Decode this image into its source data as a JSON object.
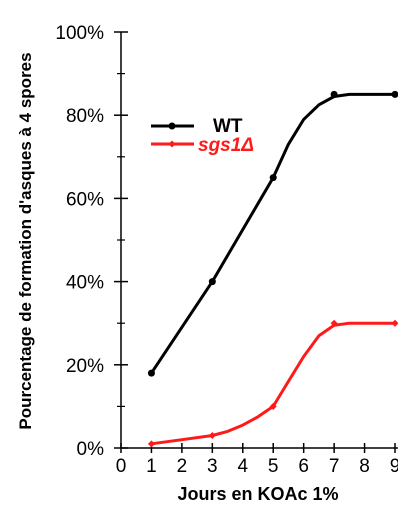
{
  "chart_data": {
    "type": "line",
    "title": "",
    "xlabel": "Jours en KOAc 1%",
    "ylabel": "Pourcentage de formation d'asques à 4 spores",
    "xlim": [
      0,
      9
    ],
    "ylim": [
      0,
      100
    ],
    "x_ticks": [
      "0",
      "1",
      "2",
      "3",
      "4",
      "5",
      "6",
      "7",
      "8",
      "9"
    ],
    "y_ticks": [
      "0%",
      "20%",
      "40%",
      "60%",
      "80%",
      "100%"
    ],
    "grid": false,
    "legend_position": "top-left",
    "series": [
      {
        "name": "WT",
        "color": "#000000",
        "marker": "circle",
        "points": [
          {
            "x": 1,
            "y": 18
          },
          {
            "x": 3,
            "y": 40
          },
          {
            "x": 5,
            "y": 65
          },
          {
            "x": 7,
            "y": 85
          },
          {
            "x": 9,
            "y": 85
          }
        ],
        "curve": [
          [
            1,
            18
          ],
          [
            3,
            40
          ],
          [
            5,
            65
          ],
          [
            5.5,
            73
          ],
          [
            6,
            79
          ],
          [
            6.5,
            82.5
          ],
          [
            7,
            84.5
          ],
          [
            7.5,
            85
          ],
          [
            9,
            85
          ]
        ]
      },
      {
        "name": "sgs1Δ",
        "color": "#ff1a1a",
        "marker": "diamond",
        "points": [
          {
            "x": 1,
            "y": 1
          },
          {
            "x": 3,
            "y": 3
          },
          {
            "x": 5,
            "y": 10
          },
          {
            "x": 7,
            "y": 30
          },
          {
            "x": 9,
            "y": 30
          }
        ],
        "curve": [
          [
            1,
            1
          ],
          [
            2,
            2
          ],
          [
            3,
            3
          ],
          [
            3.5,
            4
          ],
          [
            4,
            5.5
          ],
          [
            4.5,
            7.5
          ],
          [
            5,
            10
          ],
          [
            5.5,
            16
          ],
          [
            6,
            22
          ],
          [
            6.5,
            27
          ],
          [
            7,
            29.5
          ],
          [
            7.5,
            30
          ],
          [
            9,
            30
          ]
        ]
      }
    ]
  }
}
